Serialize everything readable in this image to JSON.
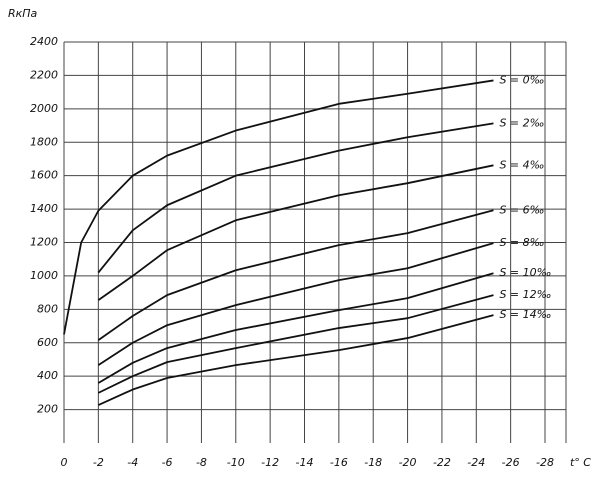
{
  "chart_data": {
    "type": "line",
    "y_label": "RкПа",
    "x_label": "t° C",
    "x": [
      0,
      -1,
      -2,
      -4,
      -6,
      -10,
      -16,
      -20,
      -25
    ],
    "series": [
      {
        "name": "S = 0‰",
        "color": "#111111",
        "values": [
          650,
          1200,
          1390,
          1600,
          1720,
          1870,
          2030,
          2090,
          2170
        ]
      },
      {
        "name": "S = 2‰",
        "color": "#111111",
        "values": [
          null,
          null,
          1020,
          1273,
          1423,
          1600,
          1750,
          1830,
          1913
        ]
      },
      {
        "name": "S = 4‰",
        "color": "#111111",
        "values": [
          null,
          null,
          855,
          1000,
          1154,
          1333,
          1483,
          1555,
          1662
        ]
      },
      {
        "name": "S = 6‰",
        "color": "#111111",
        "values": [
          null,
          null,
          616,
          760,
          885,
          1034,
          1184,
          1256,
          1393
        ]
      },
      {
        "name": "S = 8‰",
        "color": "#111111",
        "values": [
          null,
          null,
          466,
          600,
          705,
          825,
          975,
          1046,
          1196
        ]
      },
      {
        "name": "S = 10‰",
        "color": "#111111",
        "values": [
          null,
          null,
          359,
          480,
          568,
          676,
          795,
          867,
          1016
        ]
      },
      {
        "name": "S = 12‰",
        "color": "#111111",
        "values": [
          null,
          null,
          300,
          400,
          484,
          568,
          688,
          747,
          885
        ]
      },
      {
        "name": "S = 14‰",
        "color": "#111111",
        "values": [
          null,
          null,
          227,
          320,
          389,
          466,
          556,
          628,
          765
        ]
      }
    ],
    "xlim": [
      0,
      -28
    ],
    "xticks": [
      0,
      -2,
      -4,
      -6,
      -8,
      -10,
      -12,
      -14,
      -16,
      -18,
      -20,
      -22,
      -24,
      -26,
      -28
    ],
    "ylim": [
      0,
      2400
    ],
    "yticks": [
      200,
      400,
      600,
      800,
      1000,
      1200,
      1400,
      1600,
      1800,
      2000,
      2200,
      2400
    ],
    "grid": true
  }
}
